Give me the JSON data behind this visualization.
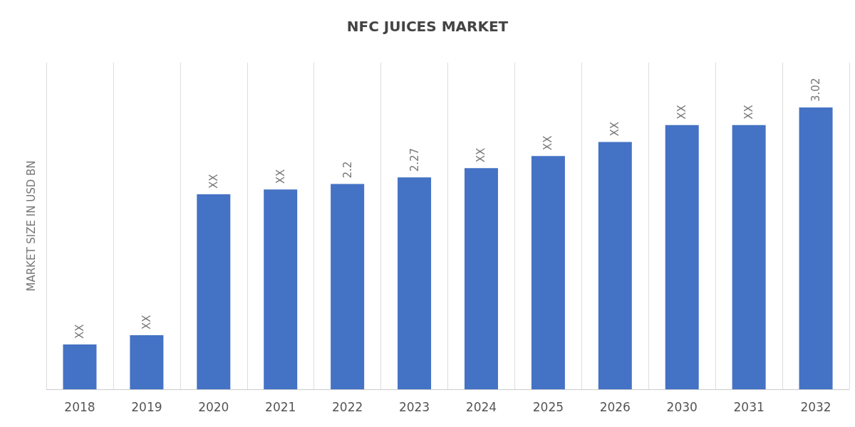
{
  "chart_data": {
    "type": "bar",
    "title": "NFC JUICES MARKET",
    "ylabel": "MARKET SIZE IN USD BN",
    "categories": [
      "2018",
      "2019",
      "2020",
      "2021",
      "2022",
      "2023",
      "2024",
      "2025",
      "2026",
      "2030",
      "2031",
      "2032"
    ],
    "values": [
      0.48,
      0.58,
      2.09,
      2.14,
      2.2,
      2.27,
      2.37,
      2.5,
      2.65,
      2.83,
      2.83,
      3.02
    ],
    "value_labels": [
      "XX",
      "XX",
      "XX",
      "XX",
      "2.2",
      "2.27",
      "XX",
      "XX",
      "XX",
      "XX",
      "XX",
      "3.02"
    ],
    "color": "#4472c4",
    "grid": "x",
    "tick_labels": "x"
  }
}
